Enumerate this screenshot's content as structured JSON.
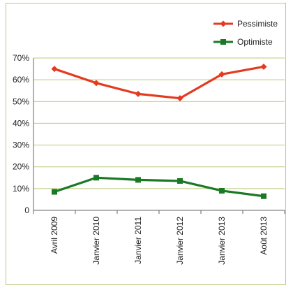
{
  "chart_data": {
    "type": "line",
    "title": "",
    "xlabel": "",
    "ylabel": "",
    "categories": [
      "Avril 2009",
      "Janvier 2010",
      "Janvier 2011",
      "Janvier 2012",
      "Janvier 2013",
      "Août 2013"
    ],
    "yticks": [
      "70%",
      "60%",
      "50%",
      "40%",
      "30%",
      "20%",
      "10%",
      "0"
    ],
    "ylim": [
      0,
      70
    ],
    "grid": true,
    "legend_placement": "top-right",
    "series": [
      {
        "name": "Pessimiste",
        "values": [
          65,
          58.5,
          53.5,
          51.5,
          62.5,
          66
        ],
        "color": "#e53a1f",
        "marker": "diamond"
      },
      {
        "name": "Optimiste",
        "values": [
          8.5,
          15,
          14,
          13.5,
          9,
          6.5
        ],
        "color": "#1a7a24",
        "marker": "square"
      }
    ],
    "colors": {
      "grid": "#b9c97a",
      "frame": "#b9c97a",
      "axis": "#666666"
    }
  }
}
